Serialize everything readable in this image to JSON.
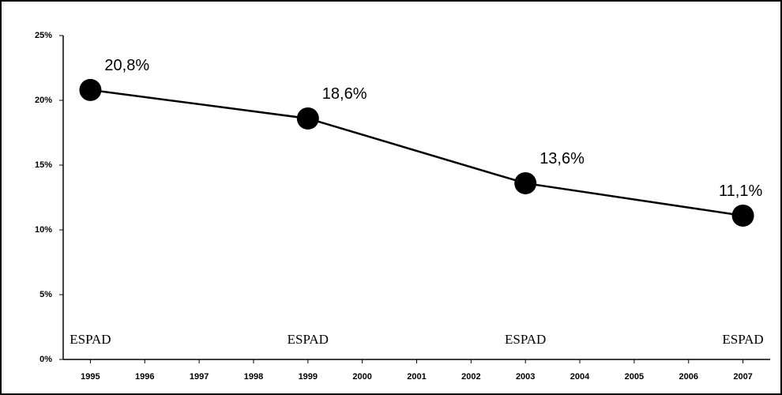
{
  "chart_data": {
    "type": "line",
    "x": [
      1995,
      1999,
      2003,
      2007
    ],
    "values": [
      20.8,
      18.6,
      13.6,
      11.1
    ],
    "value_labels": [
      "20,8%",
      "18,6%",
      "13,6%",
      "11,1%"
    ],
    "annotations": [
      "ESPAD",
      "ESPAD",
      "ESPAD",
      "ESPAD"
    ],
    "color": "#000000",
    "xlim": [
      1994.5,
      2007.5
    ],
    "xticks": [
      1995,
      1996,
      1997,
      1998,
      1999,
      2000,
      2001,
      2002,
      2003,
      2004,
      2005,
      2006,
      2007
    ],
    "ylim": [
      0,
      25
    ],
    "yticks": [
      {
        "value": 0,
        "label": "0%"
      },
      {
        "value": 5,
        "label": "5%"
      },
      {
        "value": 10,
        "label": "10%"
      },
      {
        "value": 15,
        "label": "15%"
      },
      {
        "value": 20,
        "label": "20%"
      },
      {
        "value": 25,
        "label": "25%"
      }
    ],
    "grid": false
  }
}
